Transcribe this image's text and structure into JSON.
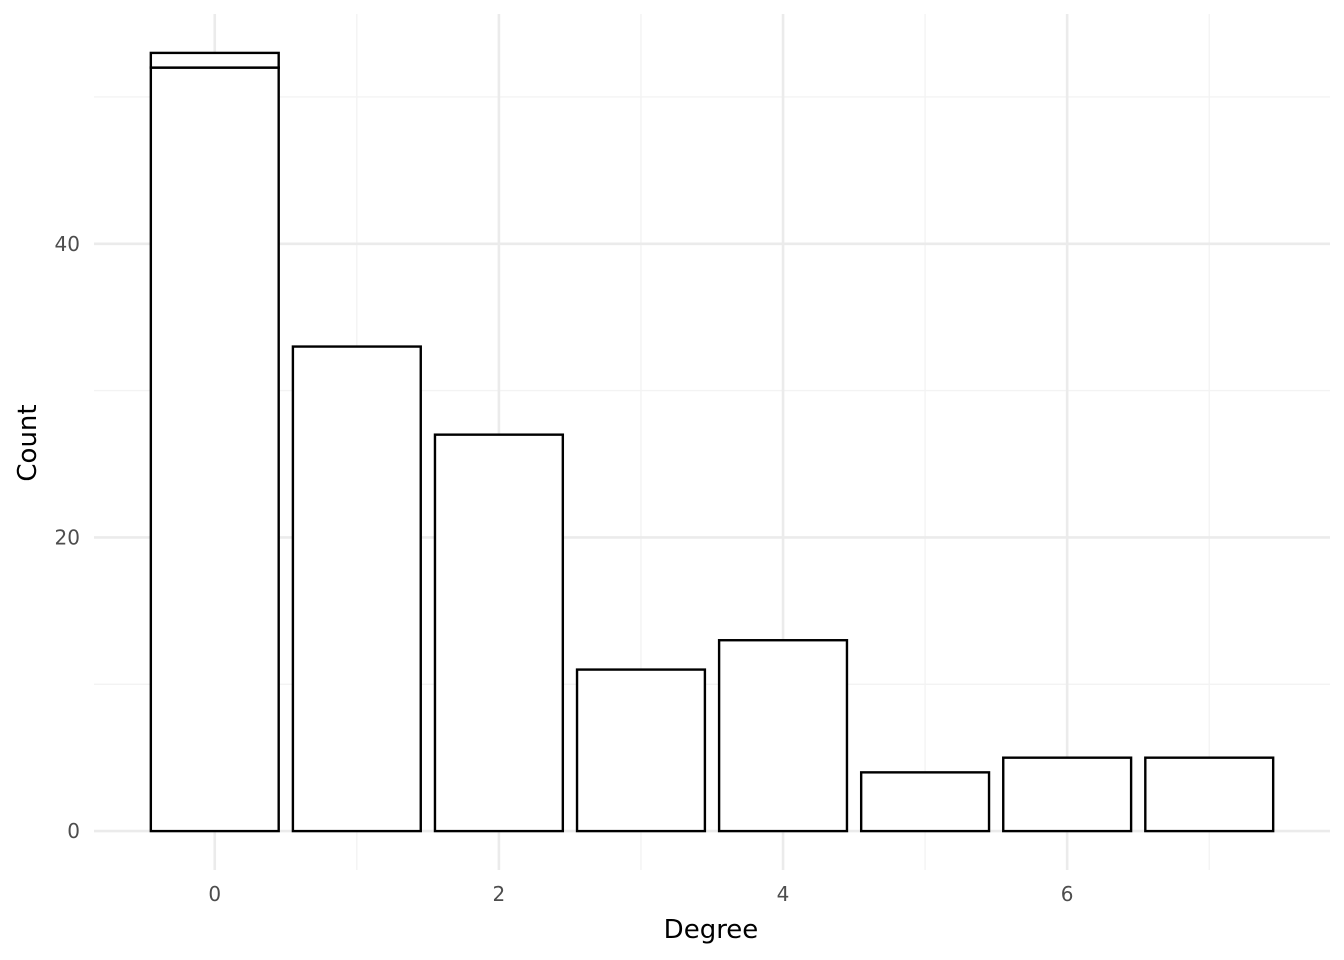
{
  "chart_data": {
    "type": "bar",
    "xlabel": "Degree",
    "ylabel": "Count",
    "x": [
      0,
      1,
      2,
      3,
      4,
      5,
      6,
      7
    ],
    "values": [
      53,
      33,
      27,
      11,
      13,
      4,
      5,
      5
    ],
    "stacked_segments": [
      {
        "x": 0,
        "from": 0,
        "to": 52
      },
      {
        "x": 0,
        "from": 52,
        "to": 53
      }
    ],
    "xticks": [
      0,
      2,
      4,
      6
    ],
    "yticks": [
      0,
      20,
      40
    ],
    "xlim": [
      -0.85,
      7.85
    ],
    "ylim": [
      -2.65,
      55.65
    ],
    "grid": true,
    "bar_fill": "#ffffff",
    "bar_stroke": "#000000",
    "grid_major_color": "#ebebeb",
    "grid_minor_color": "#f3f3f3"
  }
}
